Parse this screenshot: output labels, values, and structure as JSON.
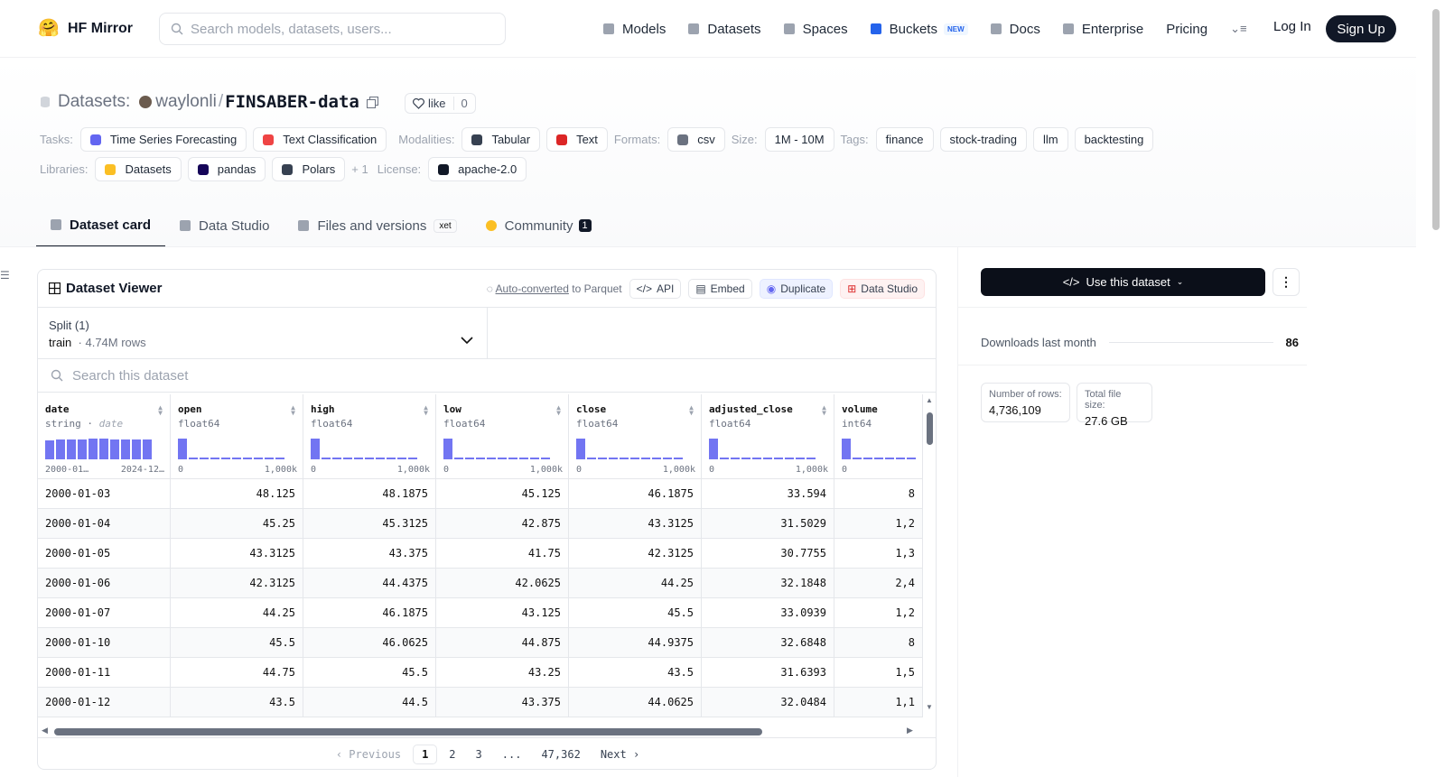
{
  "nav": {
    "brand": "HF Mirror",
    "search_placeholder": "Search models, datasets, users...",
    "links": [
      {
        "label": "Models",
        "icon": "cube-icon",
        "color": "#9ca3af"
      },
      {
        "label": "Datasets",
        "icon": "database-icon",
        "color": "#9ca3af"
      },
      {
        "label": "Spaces",
        "icon": "grid-icon",
        "color": "#9ca3af"
      },
      {
        "label": "Buckets",
        "icon": "bucket-icon",
        "color": "#2563eb"
      },
      {
        "label": "Docs",
        "icon": "book-icon",
        "color": "#9ca3af"
      },
      {
        "label": "Enterprise",
        "icon": "enterprise-icon",
        "color": "#9ca3af"
      },
      {
        "label": "Pricing"
      }
    ],
    "new_badge": "NEW",
    "login": "Log In",
    "signup": "Sign Up"
  },
  "header": {
    "datasets_label": "Datasets:",
    "owner": "waylonli",
    "slash": "/",
    "name": "FINSABER-data",
    "like_label": "like",
    "like_count": "0"
  },
  "tags": {
    "tasks_label": "Tasks:",
    "tasks": [
      {
        "label": "Time Series Forecasting",
        "color": "#6366f1"
      },
      {
        "label": "Text Classification",
        "color": "#ef4444"
      }
    ],
    "modalities_label": "Modalities:",
    "modalities": [
      {
        "label": "Tabular",
        "color": "#374151"
      },
      {
        "label": "Text",
        "color": "#dc2626"
      }
    ],
    "formats_label": "Formats:",
    "formats": [
      {
        "label": "csv"
      }
    ],
    "size_label": "Size:",
    "size": "1M - 10M",
    "tags_label": "Tags:",
    "tags": [
      "finance",
      "stock-trading",
      "llm",
      "backtesting"
    ],
    "libraries_label": "Libraries:",
    "libraries": [
      {
        "label": "Datasets",
        "color": "#fbbf24"
      },
      {
        "label": "pandas",
        "color": "#150458"
      },
      {
        "label": "Polars",
        "color": "#374151"
      }
    ],
    "libraries_more": "+ 1",
    "license_label": "License:",
    "license": "apache-2.0"
  },
  "tabs": [
    {
      "label": "Dataset card",
      "active": true
    },
    {
      "label": "Data Studio"
    },
    {
      "label": "Files and versions",
      "badge": "xet"
    },
    {
      "label": "Community",
      "count": "1"
    }
  ],
  "viewer": {
    "title": "Dataset Viewer",
    "auto_converted": "Auto-converted",
    "to_parquet": "to Parquet",
    "api": "API",
    "embed": "Embed",
    "duplicate": "Duplicate",
    "data_studio": "Data Studio",
    "split_label": "Split (1)",
    "split_name": "train",
    "split_rows": "4.74M rows",
    "search_placeholder": "Search this dataset",
    "columns": [
      {
        "name": "date",
        "type": "string",
        "subtype": "date",
        "range_min": "2000-01…",
        "range_max": "2024-12…",
        "hist": [
          0.8,
          0.85,
          0.85,
          0.85,
          0.9,
          0.9,
          0.85,
          0.85,
          0.85,
          0.85
        ]
      },
      {
        "name": "open",
        "type": "float64",
        "range_min": "0",
        "range_max": "1,000k",
        "hist": [
          0.9,
          0.06,
          0.06,
          0,
          0,
          0,
          0,
          0,
          0,
          0.06
        ]
      },
      {
        "name": "high",
        "type": "float64",
        "range_min": "0",
        "range_max": "1,000k",
        "hist": [
          0.9,
          0.06,
          0.06,
          0,
          0,
          0,
          0,
          0,
          0,
          0.06
        ]
      },
      {
        "name": "low",
        "type": "float64",
        "range_min": "0",
        "range_max": "1,000k",
        "hist": [
          0.9,
          0.06,
          0.06,
          0,
          0,
          0,
          0,
          0,
          0,
          0.06
        ]
      },
      {
        "name": "close",
        "type": "float64",
        "range_min": "0",
        "range_max": "1,000k",
        "hist": [
          0.9,
          0.06,
          0.06,
          0,
          0,
          0,
          0,
          0,
          0,
          0.06
        ]
      },
      {
        "name": "adjusted_close",
        "type": "float64",
        "range_min": "0",
        "range_max": "1,000k",
        "hist": [
          0.9,
          0.06,
          0.06,
          0.06,
          0.06,
          0.06,
          0.06,
          0,
          0.06,
          0.06
        ]
      },
      {
        "name": "volume",
        "type": "int64",
        "range_min": "0",
        "range_max": "",
        "hist": [
          0.9,
          0.06,
          0.06,
          0.06,
          0.06,
          0.06,
          0.06
        ]
      }
    ],
    "rows": [
      [
        "2000-01-03",
        "48.125",
        "48.1875",
        "45.125",
        "46.1875",
        "33.594",
        "8"
      ],
      [
        "2000-01-04",
        "45.25",
        "45.3125",
        "42.875",
        "43.3125",
        "31.5029",
        "1,2"
      ],
      [
        "2000-01-05",
        "43.3125",
        "43.375",
        "41.75",
        "42.3125",
        "30.7755",
        "1,3"
      ],
      [
        "2000-01-06",
        "42.3125",
        "44.4375",
        "42.0625",
        "44.25",
        "32.1848",
        "2,4"
      ],
      [
        "2000-01-07",
        "44.25",
        "46.1875",
        "43.125",
        "45.5",
        "33.0939",
        "1,2"
      ],
      [
        "2000-01-10",
        "45.5",
        "46.0625",
        "44.875",
        "44.9375",
        "32.6848",
        "8"
      ],
      [
        "2000-01-11",
        "44.75",
        "45.5",
        "43.25",
        "43.5",
        "31.6393",
        "1,5"
      ],
      [
        "2000-01-12",
        "43.5",
        "44.5",
        "43.375",
        "44.0625",
        "32.0484",
        "1,1"
      ]
    ],
    "pager": {
      "previous": "Previous",
      "pages": [
        "1",
        "2",
        "3",
        "...",
        "47,362"
      ],
      "next": "Next"
    }
  },
  "sidebar": {
    "use_button": "Use this dataset",
    "downloads_label": "Downloads last month",
    "downloads_value": "86",
    "rows_label": "Number of rows:",
    "rows_value": "4,736,109",
    "size_label": "Total file size:",
    "size_value": "27.6 GB"
  }
}
